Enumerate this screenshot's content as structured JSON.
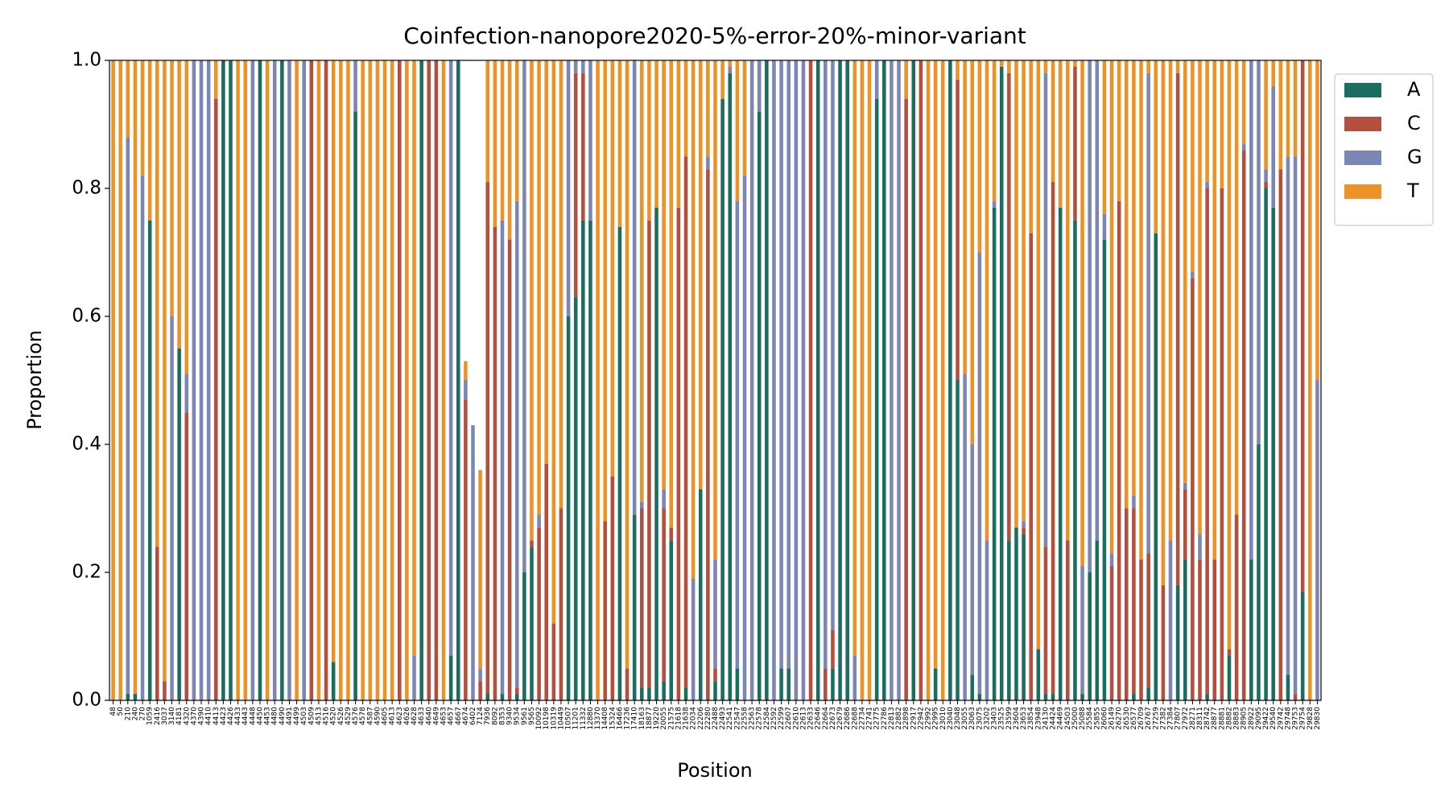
{
  "chart_data": {
    "type": "stacked_bar",
    "title": "Coinfection-nanopore2020-5%-error-20%-minor-variant",
    "x_label": "Position",
    "y_label": "Proportion",
    "ylim": [
      0,
      1
    ],
    "yticks": [
      {
        "value": 0,
        "label": "0.0"
      },
      {
        "value": 0.2,
        "label": "0.2"
      },
      {
        "value": 0.4,
        "label": "0.4"
      },
      {
        "value": 0.6,
        "label": "0.6"
      },
      {
        "value": 0.8,
        "label": "0.8"
      },
      {
        "value": 1,
        "label": "1.0"
      }
    ],
    "legend": "upper right outside",
    "categories": [
      48,
      50,
      210,
      240,
      270,
      1059,
      2416,
      3037,
      3140,
      4181,
      4320,
      4370,
      4390,
      4410,
      4413,
      4423,
      4426,
      4433,
      4443,
      4448,
      4450,
      4453,
      4480,
      4490,
      4491,
      4499,
      4503,
      4509,
      4513,
      4516,
      4520,
      4526,
      4529,
      4576,
      4578,
      4587,
      4590,
      4605,
      4613,
      4623,
      4626,
      4628,
      4633,
      4640,
      4649,
      4653,
      4657,
      4667,
      4674,
      6402,
      7124,
      7936,
      8092,
      8353,
      9340,
      9534,
      9561,
      9565,
      10092,
      10198,
      10319,
      10449,
      10507,
      11201,
      11332,
      12880,
      13370,
      14408,
      15324,
      16466,
      17236,
      17410,
      18163,
      18877,
      19220,
      20055,
      21575,
      21618,
      21638,
      22034,
      22206,
      22280,
      22488,
      22493,
      22541,
      22547,
      22558,
      22563,
      22578,
      22584,
      22592,
      22599,
      22607,
      22610,
      22613,
      22633,
      22646,
      22664,
      22673,
      22679,
      22686,
      22688,
      22734,
      22741,
      22775,
      22786,
      22813,
      22882,
      22898,
      22917,
      22942,
      22992,
      22995,
      23010,
      23040,
      23048,
      23055,
      23063,
      23075,
      23202,
      23403,
      23525,
      23599,
      23604,
      23653,
      23854,
      23948,
      24130,
      24424,
      24469,
      24503,
      25000,
      25088,
      25584,
      25855,
      26060,
      26149,
      26270,
      26530,
      26577,
      26709,
      26767,
      27259,
      27382,
      27384,
      27807,
      27972,
      28271,
      28311,
      28742,
      28877,
      28881,
      28882,
      28883,
      28905,
      28922,
      29095,
      29422,
      29540,
      29742,
      29748,
      29753,
      29754,
      29828,
      29830
    ],
    "series": [
      {
        "name": "A",
        "color": "#1b6e5f",
        "values": [
          0,
          0,
          0.01,
          0.01,
          0,
          0.75,
          0,
          0,
          0,
          0.55,
          0,
          0,
          0,
          0,
          0,
          1,
          1,
          0,
          0,
          0,
          1,
          0,
          0,
          1,
          0,
          0,
          0,
          0,
          0,
          0,
          0.06,
          0,
          0,
          0.92,
          0,
          0,
          0,
          0,
          0,
          0,
          0,
          0,
          1,
          0,
          0,
          0,
          0.07,
          1,
          0,
          0,
          0,
          0.01,
          0,
          0.01,
          0,
          0.01,
          0.2,
          0.24,
          0,
          0,
          0,
          0,
          0.6,
          0.63,
          0.75,
          0.75,
          0,
          0,
          0,
          0.74,
          0,
          0.29,
          0.02,
          0.02,
          0.77,
          0.03,
          0.25,
          0,
          0.02,
          0,
          0.33,
          0,
          0.03,
          0.94,
          0.98,
          0.05,
          0,
          0,
          0.92,
          1,
          0,
          0.05,
          0.05,
          0,
          0,
          0,
          1,
          0,
          0.05,
          1,
          1,
          0,
          0,
          0,
          0.94,
          1,
          0,
          0,
          0,
          1,
          0,
          0,
          0.05,
          0,
          1,
          0.5,
          0,
          0.04,
          0.01,
          0,
          0.77,
          0.99,
          0.25,
          0.27,
          0.26,
          0,
          0.08,
          0.01,
          0.01,
          0.77,
          0,
          0.75,
          0.01,
          0.2,
          0.25,
          0.72,
          0,
          0,
          0,
          0.01,
          0,
          0.02,
          0.73,
          0,
          0,
          0.18,
          0.22,
          0,
          0,
          0.01,
          0,
          0,
          0.07,
          0,
          0,
          0.22,
          0.4,
          0.8,
          0.77,
          0,
          0.04,
          0,
          0.17,
          0,
          0
        ]
      },
      {
        "name": "C",
        "color": "#b44f3e",
        "values": [
          0,
          0,
          0,
          0,
          0,
          0,
          0.24,
          0.03,
          0,
          0,
          0.45,
          0,
          0,
          0,
          0.94,
          0,
          0,
          0,
          0,
          0,
          0,
          0,
          0,
          0,
          0,
          0,
          0,
          1,
          0,
          1,
          0,
          0,
          0,
          0,
          0,
          0,
          0,
          0,
          0,
          1,
          0,
          0,
          0,
          1,
          1,
          0,
          0,
          0,
          0.47,
          0,
          0.03,
          0.8,
          0.74,
          0,
          0.72,
          0.01,
          0,
          0.01,
          0.27,
          0.37,
          0.12,
          0.3,
          0,
          0.35,
          0.23,
          0,
          0,
          0.28,
          0.35,
          0,
          0.05,
          0,
          0.28,
          0.73,
          0,
          0.27,
          0.02,
          0.77,
          0.83,
          0,
          0,
          0.83,
          0.02,
          0,
          0,
          0,
          0,
          0,
          0,
          0,
          0,
          0,
          0,
          0,
          0,
          1,
          0,
          0.05,
          0.06,
          0,
          0,
          0,
          0,
          0,
          0,
          0,
          0,
          0,
          0.94,
          0,
          1,
          0,
          0,
          0,
          0,
          0.47,
          0,
          0,
          0,
          0,
          0,
          0,
          0.73,
          0,
          0.01,
          0.73,
          0,
          0.23,
          0.8,
          0,
          0.25,
          0.24,
          0,
          0,
          0,
          0,
          0.21,
          0.78,
          0.3,
          0.29,
          0.22,
          0.21,
          0,
          0.18,
          0,
          0.8,
          0.11,
          0.66,
          0.22,
          0.79,
          0.22,
          0.8,
          0.01,
          0.29,
          0.86,
          0,
          0,
          0.01,
          0,
          0.83,
          0,
          0.01,
          0.83,
          0,
          0
        ]
      },
      {
        "name": "G",
        "color": "#7b86b5",
        "values": [
          0,
          0,
          0.87,
          0,
          0.82,
          0,
          0,
          0,
          0.6,
          0,
          0.06,
          1,
          1,
          1,
          0,
          0,
          0,
          0,
          0,
          1,
          0,
          0,
          1,
          0,
          1,
          0,
          1,
          0,
          0,
          0,
          0,
          0,
          0,
          0.08,
          0,
          0,
          0,
          0,
          0,
          0,
          0,
          0.07,
          0,
          0,
          0,
          0,
          0.93,
          0,
          0.03,
          0.43,
          0.02,
          0,
          0,
          0.74,
          0,
          0.76,
          0.8,
          0,
          0.02,
          0,
          0,
          0,
          0.4,
          0.02,
          0.02,
          0.25,
          0,
          0,
          0,
          0,
          0,
          0.71,
          0.01,
          0,
          0,
          0.03,
          0,
          0,
          0,
          0.19,
          0,
          0.02,
          0.17,
          0,
          0.01,
          0.73,
          0.82,
          1,
          0.08,
          0,
          1,
          0.95,
          0.95,
          1,
          1,
          0,
          0,
          0.95,
          0.89,
          0,
          0,
          0.07,
          0,
          0,
          0.06,
          0,
          1,
          1,
          0,
          0,
          0,
          0,
          0,
          0,
          0,
          0,
          0.51,
          0.36,
          0.69,
          0.25,
          0.01,
          0,
          0,
          0,
          0.01,
          0,
          0,
          0.74,
          0,
          0,
          0,
          0,
          0.2,
          0.8,
          0.75,
          0.04,
          0.02,
          0,
          0,
          0.02,
          0,
          0.75,
          0,
          0,
          0.25,
          0,
          0.01,
          0.01,
          0.04,
          0.01,
          0,
          0,
          0,
          0,
          0.01,
          0.78,
          0.6,
          0.02,
          0.19,
          0,
          0.81,
          0.84,
          0,
          0,
          0.5
        ]
      },
      {
        "name": "T",
        "color": "#ec9227",
        "values": [
          1,
          1,
          0.12,
          0.99,
          0.18,
          0.25,
          0.76,
          0.97,
          0.4,
          0.45,
          0.49,
          0,
          0,
          0,
          0.06,
          0,
          0,
          1,
          1,
          0,
          0,
          1,
          0,
          0,
          0,
          1,
          0,
          0,
          1,
          0,
          0.94,
          1,
          1,
          0,
          1,
          1,
          1,
          1,
          1,
          0,
          1,
          0.93,
          0,
          0,
          0,
          1,
          0,
          0,
          0.03,
          0,
          0.31,
          0.19,
          0.26,
          0.25,
          0.28,
          0.22,
          0,
          0.75,
          0.71,
          0.63,
          0.88,
          0.7,
          0,
          0,
          0,
          0,
          1,
          0.72,
          0.65,
          0.26,
          0.95,
          0,
          0.69,
          0.25,
          0.23,
          0.67,
          0.73,
          0.23,
          0.15,
          0.81,
          0.67,
          0.15,
          0.78,
          0.06,
          0.01,
          0.22,
          0.18,
          0,
          0,
          0,
          0,
          0,
          0,
          0,
          0,
          0,
          0,
          0,
          0,
          0,
          0,
          0.93,
          1,
          1,
          0,
          0,
          0,
          0,
          0.06,
          0,
          0,
          1,
          0.95,
          1,
          0,
          0.03,
          0.49,
          0.6,
          0.3,
          0.75,
          0.22,
          0.01,
          0.02,
          0.73,
          0.72,
          0.27,
          0.92,
          0.02,
          0.19,
          0.23,
          0.75,
          0.01,
          0.79,
          0,
          0,
          0.24,
          0.77,
          0.22,
          0.7,
          0.68,
          0.78,
          0.02,
          0.27,
          0.82,
          0.75,
          0.02,
          0.66,
          0.33,
          0.74,
          0.19,
          0.78,
          0.2,
          0.92,
          0.71,
          0.13,
          0,
          0,
          0.17,
          0.04,
          0.17,
          0.15,
          0.15,
          0,
          1,
          0.5
        ]
      }
    ]
  }
}
